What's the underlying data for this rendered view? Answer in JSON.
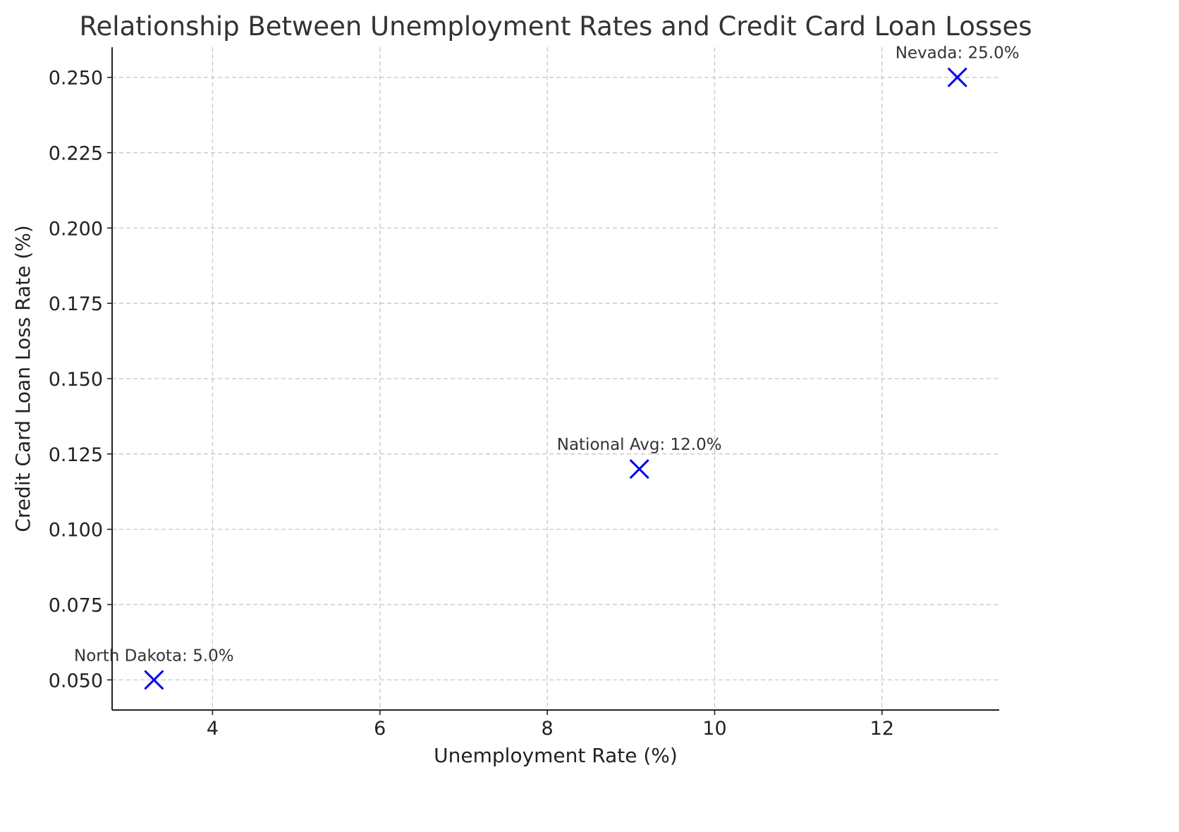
{
  "chart_data": {
    "type": "scatter",
    "title": "Relationship Between Unemployment Rates and Credit Card Loan Losses",
    "xlabel": "Unemployment Rate (%)",
    "ylabel": "Credit Card Loan Loss Rate (%)",
    "xlim": [
      2.8,
      13.4
    ],
    "ylim": [
      0.04,
      0.26
    ],
    "xticks": [
      4,
      6,
      8,
      10,
      12
    ],
    "xtick_labels": [
      "4",
      "6",
      "8",
      "10",
      "12"
    ],
    "yticks": [
      0.05,
      0.075,
      0.1,
      0.125,
      0.15,
      0.175,
      0.2,
      0.225,
      0.25
    ],
    "ytick_labels": [
      "0.050",
      "0.075",
      "0.100",
      "0.125",
      "0.150",
      "0.175",
      "0.200",
      "0.225",
      "0.250"
    ],
    "grid": true,
    "marker": "x",
    "marker_color": "#0000ee",
    "points": [
      {
        "x": 3.3,
        "y": 0.05,
        "label": "North Dakota: 5.0%"
      },
      {
        "x": 9.1,
        "y": 0.12,
        "label": "National Avg: 12.0%"
      },
      {
        "x": 12.9,
        "y": 0.25,
        "label": "Nevada: 25.0%"
      }
    ]
  }
}
